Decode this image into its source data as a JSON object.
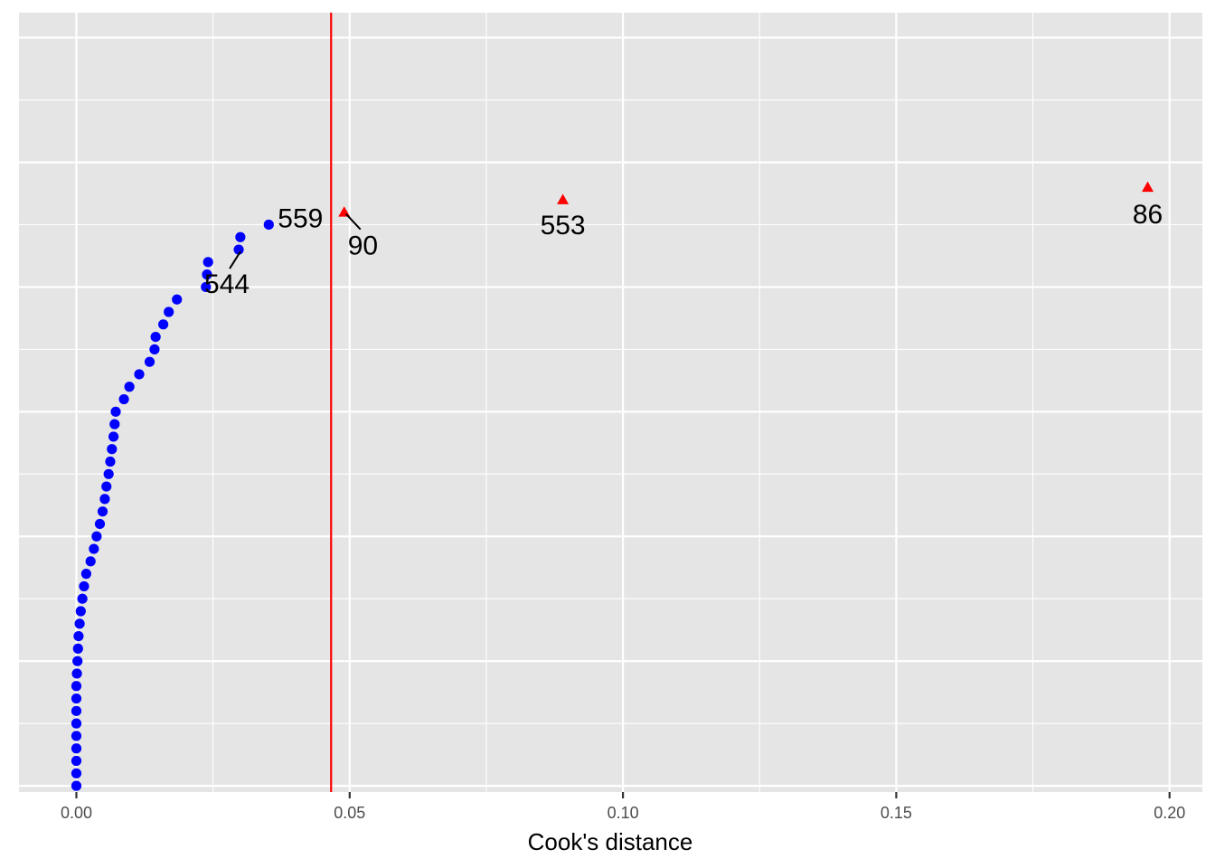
{
  "colors": {
    "panel": "#e5e5e5",
    "grid": "#ffffff",
    "points": "#0000ff",
    "outliers": "#ff0000",
    "threshold": "#ff0000",
    "labels": "#000000"
  },
  "chart_data": {
    "type": "scatter",
    "title": "",
    "xlabel": "Cook's distance",
    "ylabel": "",
    "xlim": [
      -0.0105,
      0.206
    ],
    "ylim": [
      0.5,
      63.0
    ],
    "x_ticks": [
      0.0,
      0.05,
      0.1,
      0.15,
      0.2
    ],
    "x_tick_labels": [
      "0.00",
      "0.05",
      "0.10",
      "0.15",
      "0.20"
    ],
    "grid": true,
    "legend": "none",
    "threshold_x": 0.0466,
    "points": [
      {
        "x": 0.0,
        "y": 1
      },
      {
        "x": 0.0,
        "y": 2
      },
      {
        "x": 0.0,
        "y": 3
      },
      {
        "x": 0.0,
        "y": 4
      },
      {
        "x": 0.0,
        "y": 5
      },
      {
        "x": 0.0,
        "y": 6
      },
      {
        "x": 0.0,
        "y": 7
      },
      {
        "x": 0.0,
        "y": 8
      },
      {
        "x": 0.0,
        "y": 9
      },
      {
        "x": 0.0001,
        "y": 10
      },
      {
        "x": 0.0002,
        "y": 11
      },
      {
        "x": 0.0003,
        "y": 12
      },
      {
        "x": 0.0004,
        "y": 13
      },
      {
        "x": 0.0006,
        "y": 14
      },
      {
        "x": 0.0008,
        "y": 15
      },
      {
        "x": 0.0011,
        "y": 16
      },
      {
        "x": 0.0014,
        "y": 17
      },
      {
        "x": 0.0018,
        "y": 18
      },
      {
        "x": 0.0026,
        "y": 19
      },
      {
        "x": 0.0032,
        "y": 20
      },
      {
        "x": 0.0037,
        "y": 21
      },
      {
        "x": 0.0043,
        "y": 22
      },
      {
        "x": 0.0048,
        "y": 23
      },
      {
        "x": 0.0052,
        "y": 24
      },
      {
        "x": 0.0055,
        "y": 25
      },
      {
        "x": 0.0059,
        "y": 26
      },
      {
        "x": 0.0062,
        "y": 27
      },
      {
        "x": 0.0065,
        "y": 28
      },
      {
        "x": 0.0068,
        "y": 29
      },
      {
        "x": 0.007,
        "y": 30
      },
      {
        "x": 0.0072,
        "y": 31
      },
      {
        "x": 0.0087,
        "y": 32
      },
      {
        "x": 0.0097,
        "y": 33
      },
      {
        "x": 0.0115,
        "y": 34
      },
      {
        "x": 0.0134,
        "y": 35
      },
      {
        "x": 0.0143,
        "y": 36
      },
      {
        "x": 0.0145,
        "y": 37
      },
      {
        "x": 0.0159,
        "y": 38
      },
      {
        "x": 0.0169,
        "y": 39
      },
      {
        "x": 0.0184,
        "y": 40
      },
      {
        "x": 0.0237,
        "y": 41
      },
      {
        "x": 0.0239,
        "y": 42
      },
      {
        "x": 0.0241,
        "y": 43
      },
      {
        "x": 0.0297,
        "y": 44
      },
      {
        "x": 0.03,
        "y": 45
      },
      {
        "x": 0.0352,
        "y": 46
      }
    ],
    "outliers": [
      {
        "x": 0.049,
        "y": 47
      },
      {
        "x": 0.089,
        "y": 48
      },
      {
        "x": 0.196,
        "y": 49
      }
    ],
    "annotations": [
      {
        "text": "559",
        "x": 0.0352,
        "y": 46
      },
      {
        "text": "90",
        "x": 0.049,
        "y": 47
      },
      {
        "text": "553",
        "x": 0.089,
        "y": 48
      },
      {
        "text": "86",
        "x": 0.196,
        "y": 49
      },
      {
        "text": "544",
        "x": 0.0297,
        "y": 44
      }
    ]
  }
}
